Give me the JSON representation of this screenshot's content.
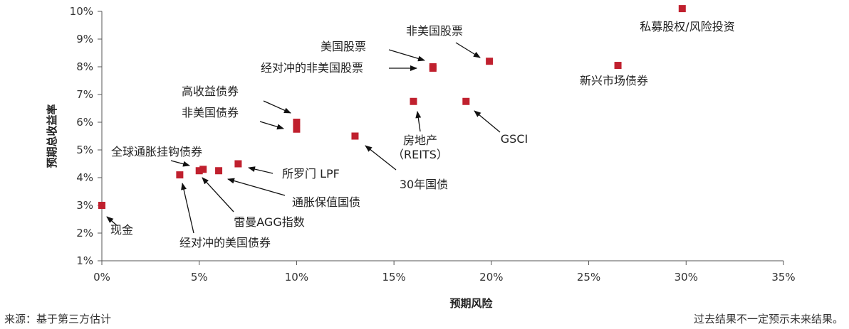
{
  "chart_data": {
    "type": "scatter",
    "xlabel": "预期风险",
    "ylabel": "预期总收益率",
    "xlim": [
      0,
      35
    ],
    "ylim": [
      1,
      10
    ],
    "x_ticks": [
      "0%",
      "5%",
      "10%",
      "15%",
      "20%",
      "25%",
      "30%",
      "35%"
    ],
    "y_ticks": [
      "1%",
      "2%",
      "3%",
      "4%",
      "5%",
      "6%",
      "7%",
      "8%",
      "9%",
      "10%"
    ],
    "marker_color": "#c0202e",
    "points": [
      {
        "x": 0.0,
        "y": 3.0,
        "label": "现金"
      },
      {
        "x": 4.0,
        "y": 4.1,
        "label": "经对冲的美国债券"
      },
      {
        "x": 5.0,
        "y": 4.25,
        "label": "全球通胀挂钩债券"
      },
      {
        "x": 5.2,
        "y": 4.3,
        "label": "雷曼AGG指数"
      },
      {
        "x": 6.0,
        "y": 4.25,
        "label": "通胀保值国债"
      },
      {
        "x": 7.0,
        "y": 4.5,
        "label": "所罗门 LPF"
      },
      {
        "x": 10.0,
        "y": 6.0,
        "label": "高收益债券"
      },
      {
        "x": 10.0,
        "y": 5.75,
        "label": "非美国债券"
      },
      {
        "x": 13.0,
        "y": 5.5,
        "label": "30年国债"
      },
      {
        "x": 16.0,
        "y": 6.75,
        "label": "房地产（REITS）"
      },
      {
        "x": 17.0,
        "y": 8.0,
        "label": "美国股票"
      },
      {
        "x": 17.0,
        "y": 7.95,
        "label": "经对冲的非美国股票"
      },
      {
        "x": 18.7,
        "y": 6.75,
        "label": "GSCI"
      },
      {
        "x": 19.9,
        "y": 8.2,
        "label": "非美国股票"
      },
      {
        "x": 26.5,
        "y": 8.05,
        "label": "新兴市场债券"
      },
      {
        "x": 29.8,
        "y": 10.1,
        "label": "私募股权/风险投资"
      }
    ]
  },
  "footer": {
    "source": "来源：基于第三方估计",
    "disclaimer": "过去结果不一定预示未来结果。"
  }
}
